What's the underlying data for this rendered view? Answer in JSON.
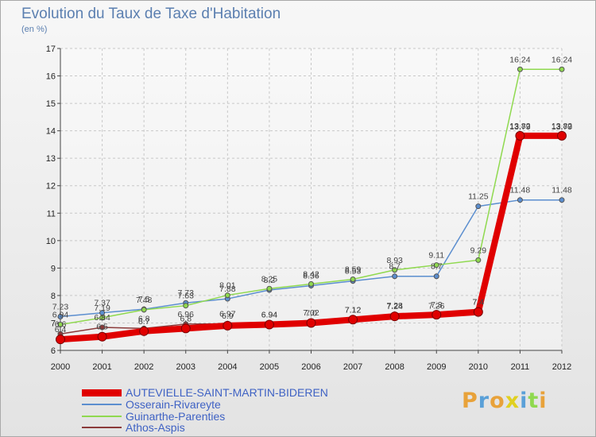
{
  "chart_data": {
    "type": "line",
    "title": "Evolution du Taux de Taxe d'Habitation",
    "subtitle": "(en %)",
    "x": [
      "2000",
      "2001",
      "2002",
      "2003",
      "2004",
      "2005",
      "2006",
      "2007",
      "2008",
      "2009",
      "2010",
      "2011",
      "2012"
    ],
    "ylim": [
      6,
      17
    ],
    "yticks": [
      "6",
      "7",
      "8",
      "9",
      "10",
      "11",
      "12",
      "13",
      "14",
      "15",
      "16",
      "17"
    ],
    "grid": true,
    "legend_position": "bottom-left",
    "series": [
      {
        "name": "AUTEVIELLE-SAINT-MARTIN-BIDEREN",
        "color": "#e00000",
        "values": [
          6.4,
          6.5,
          6.7,
          6.8,
          6.9,
          6.94,
          7.0,
          7.12,
          7.24,
          7.3,
          7.4,
          13.82,
          13.82
        ]
      },
      {
        "name": "Osserain-Rivareyte",
        "color": "#5b8ecf",
        "values": [
          7.23,
          7.37,
          7.5,
          7.73,
          7.88,
          8.2,
          8.36,
          8.53,
          8.7,
          8.7,
          11.25,
          11.48,
          11.48
        ]
      },
      {
        "name": "Guinarthe-Parenties",
        "color": "#8fd94f",
        "values": [
          6.94,
          7.19,
          7.48,
          7.63,
          8.01,
          8.25,
          8.42,
          8.59,
          8.93,
          9.11,
          9.29,
          16.24,
          16.24
        ]
      },
      {
        "name": "Athos-Aspis",
        "color": "#8b3a3a",
        "values": [
          6.6,
          6.84,
          6.8,
          6.96,
          6.97,
          6.94,
          7.02,
          7.12,
          7.28,
          7.26,
          7.4,
          13.79,
          13.79
        ]
      }
    ],
    "point_labels": {
      "AUTEVIELLE-SAINT-MARTIN-BIDEREN": [
        "6.4",
        "6.5",
        "6.7",
        "6.8",
        "6.9",
        "6.94",
        "7.0",
        "7.12",
        "7.24",
        "7.3",
        "7.4",
        "13.82",
        "13.82"
      ],
      "Osserain-Rivareyte": [
        "7.23",
        "7.37",
        "7.5",
        "7.73",
        "7.88",
        "8.2",
        "8.36",
        "8.53",
        "8.7",
        "8.7",
        "11.25",
        "11.48",
        "11.48"
      ],
      "Guinarthe-Parenties": [
        "6.94",
        "7.19",
        "7.48",
        "7.63",
        "8.01",
        "8.25",
        "8.42",
        "8.59",
        "8.93",
        "9.11",
        "9.29",
        "16.24",
        "16.24"
      ],
      "Athos-Aspis": [
        "6.6",
        "6.84",
        "6.8",
        "6.96",
        "6.97",
        "6.94",
        "7.02",
        "7.12",
        "7.28",
        "7.26",
        "7.4",
        "13.79",
        "13.79"
      ]
    }
  },
  "legend": {
    "items": [
      {
        "label": "AUTEVIELLE-SAINT-MARTIN-BIDEREN",
        "color": "#e00000"
      },
      {
        "label": "Osserain-Rivareyte",
        "color": "#5b8ecf"
      },
      {
        "label": "Guinarthe-Parenties",
        "color": "#8fd94f"
      },
      {
        "label": "Athos-Aspis",
        "color": "#8b3a3a"
      }
    ]
  },
  "logo": {
    "text": "Proxiti",
    "colors": [
      "#e8a23a",
      "#5aa0d8",
      "#e8a23a",
      "#e0d020",
      "#5aa0d8",
      "#8fd94f",
      "#e8a23a"
    ]
  }
}
